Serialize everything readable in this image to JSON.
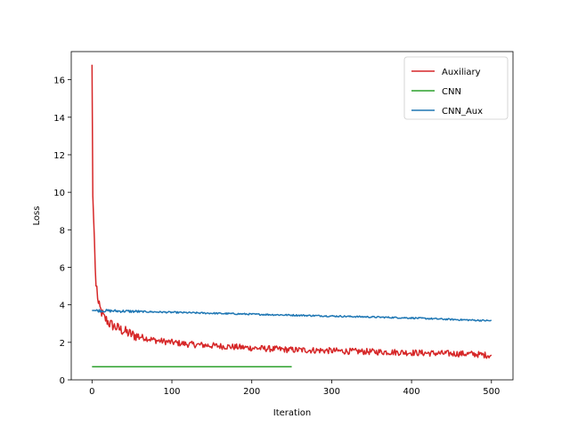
{
  "chart_data": {
    "type": "line",
    "title": "",
    "xlabel": "Iteration",
    "ylabel": "Loss",
    "xlim": [
      -26,
      527
    ],
    "ylim": [
      0,
      17.5
    ],
    "xticks": [
      0,
      100,
      200,
      300,
      400,
      500
    ],
    "yticks": [
      0,
      2,
      4,
      6,
      8,
      10,
      12,
      14,
      16
    ],
    "grid": false,
    "legend_position": "top-right",
    "series": [
      {
        "name": "Auxiliary",
        "color": "#d62728",
        "x": [
          0,
          1,
          2,
          3,
          4,
          5,
          6,
          8,
          10,
          12,
          15,
          18,
          22,
          26,
          30,
          35,
          40,
          45,
          50,
          60,
          70,
          80,
          90,
          100,
          120,
          140,
          160,
          180,
          200,
          225,
          250,
          275,
          300,
          325,
          350,
          375,
          400,
          425,
          450,
          475,
          500
        ],
        "y": [
          16.8,
          9.8,
          8.6,
          7.5,
          6.0,
          5.0,
          4.9,
          4.0,
          3.8,
          3.6,
          3.3,
          3.2,
          3.0,
          2.9,
          2.8,
          2.7,
          2.6,
          2.5,
          2.4,
          2.3,
          2.2,
          2.1,
          2.05,
          2.0,
          1.9,
          1.85,
          1.8,
          1.75,
          1.7,
          1.65,
          1.6,
          1.58,
          1.55,
          1.52,
          1.5,
          1.48,
          1.45,
          1.42,
          1.4,
          1.38,
          1.3
        ],
        "noise": 0.12
      },
      {
        "name": "CNN",
        "color": "#2ca02c",
        "x": [
          0,
          250
        ],
        "y": [
          0.7,
          0.7
        ],
        "noise": 0
      },
      {
        "name": "CNN_Aux",
        "color": "#1f77b4",
        "x": [
          0,
          50,
          100,
          150,
          200,
          250,
          300,
          350,
          400,
          450,
          500
        ],
        "y": [
          3.7,
          3.65,
          3.6,
          3.55,
          3.5,
          3.45,
          3.4,
          3.35,
          3.3,
          3.22,
          3.15
        ],
        "noise": 0.03
      }
    ]
  }
}
